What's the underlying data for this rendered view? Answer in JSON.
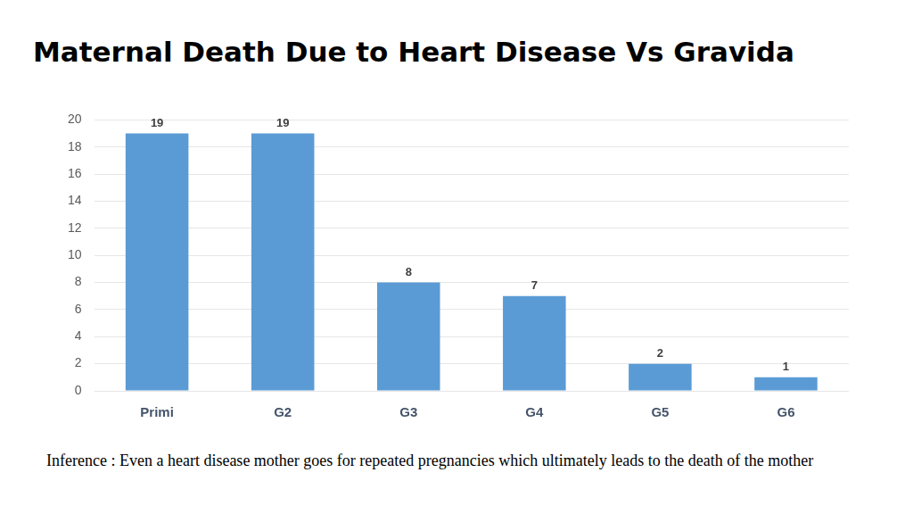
{
  "chart_data": {
    "type": "bar",
    "title": "Maternal Death Due to Heart Disease Vs Gravida",
    "categories": [
      "Primi",
      "G2",
      "G3",
      "G4",
      "G5",
      "G6"
    ],
    "values": [
      19,
      19,
      8,
      7,
      2,
      1
    ],
    "color": "#5b9bd5",
    "ylim": [
      0,
      20
    ],
    "yticks": [
      0,
      2,
      4,
      6,
      8,
      10,
      12,
      14,
      16,
      18,
      20
    ],
    "grid": true,
    "data_labels": true,
    "annotation": "Inference : Even a heart disease mother goes for repeated pregnancies which ultimately leads to the death of the mother"
  }
}
